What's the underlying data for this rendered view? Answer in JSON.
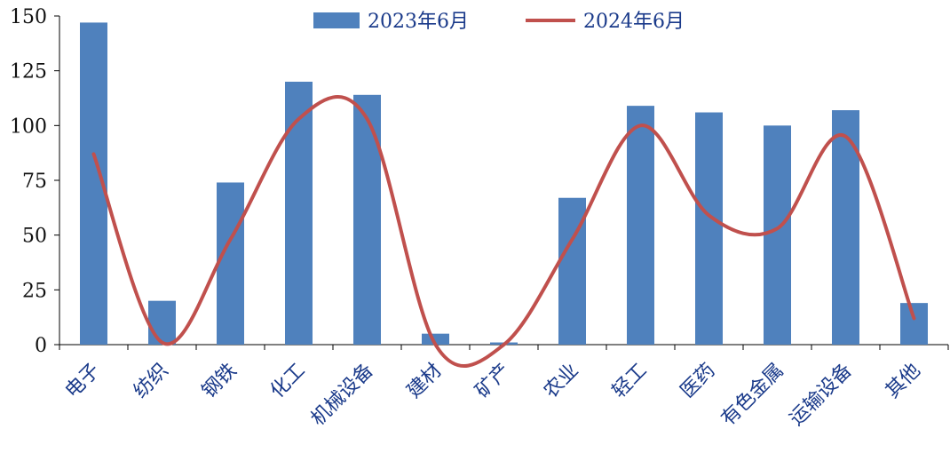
{
  "chart_data": {
    "type": "bar",
    "categories": [
      "电子",
      "纺织",
      "钢铁",
      "化工",
      "机械设备",
      "建材",
      "矿产",
      "农业",
      "轻工",
      "医药",
      "有色金属",
      "运输设备",
      "其他"
    ],
    "series": [
      {
        "name": "2023年6月",
        "type": "bar",
        "color": "#4f81bd",
        "values": [
          147,
          20,
          74,
          120,
          114,
          5,
          1,
          67,
          109,
          106,
          100,
          107,
          19
        ]
      },
      {
        "name": "2024年6月",
        "type": "line",
        "smooth": true,
        "color": "#c0504d",
        "values": [
          87,
          1,
          48,
          103,
          103,
          0,
          0,
          48,
          100,
          59,
          53,
          95,
          12
        ]
      }
    ],
    "ylim": [
      0,
      150
    ],
    "yticks": [
      0,
      25,
      50,
      75,
      100,
      125,
      150
    ],
    "grid": false,
    "legend_position": "top-center"
  }
}
